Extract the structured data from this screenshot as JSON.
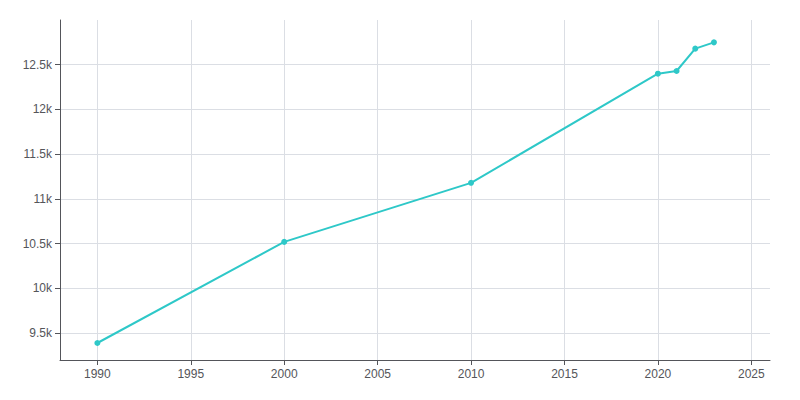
{
  "chart_data": {
    "type": "line",
    "x": [
      1990,
      2000,
      2010,
      2020,
      2021,
      2022,
      2023
    ],
    "values": [
      9390,
      10520,
      11180,
      12400,
      12430,
      12680,
      12750
    ],
    "color": "#2ec8c8",
    "marker": "circle",
    "xlim": [
      1988,
      2026
    ],
    "xticks": [
      1990,
      1995,
      2000,
      2005,
      2010,
      2015,
      2020,
      2025
    ],
    "ylim": [
      9200,
      13000
    ],
    "yticks": [
      {
        "value": 9500,
        "label": "9.5k"
      },
      {
        "value": 10000,
        "label": "10k"
      },
      {
        "value": 10500,
        "label": "10.5k"
      },
      {
        "value": 11000,
        "label": "11k"
      },
      {
        "value": 11500,
        "label": "11.5k"
      },
      {
        "value": 12000,
        "label": "12k"
      },
      {
        "value": 12500,
        "label": "12.5k"
      }
    ],
    "grid": true
  }
}
